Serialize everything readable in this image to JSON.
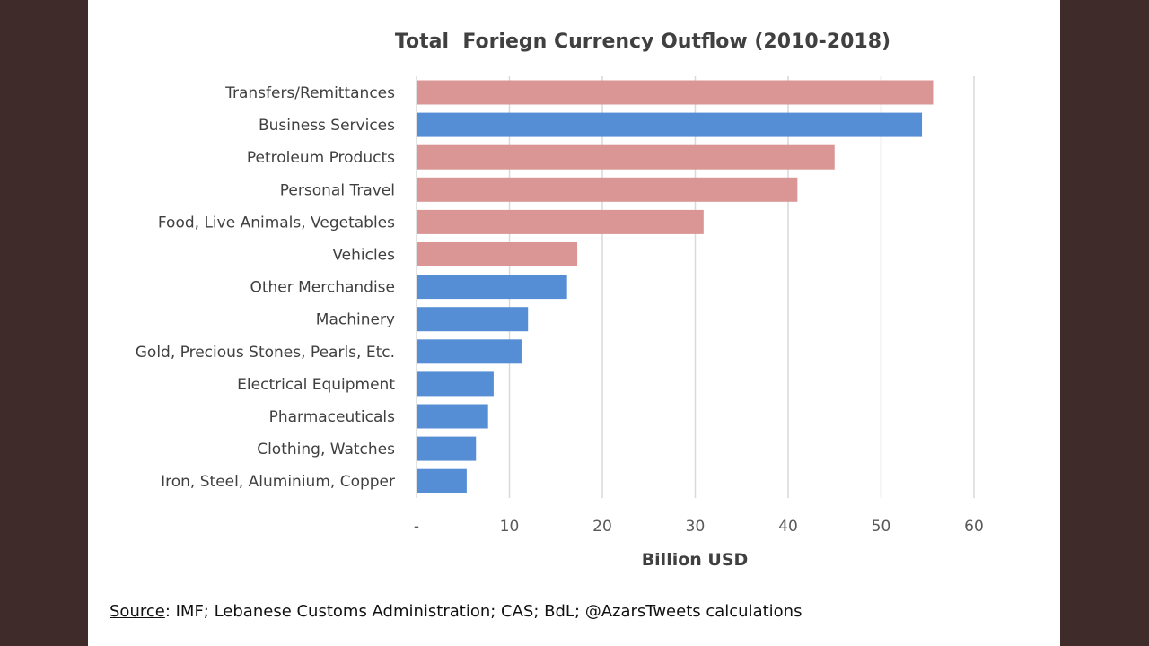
{
  "chart_data": {
    "type": "bar",
    "orientation": "horizontal",
    "title": "Total  Foriegn Currency Outflow (2010-2018)",
    "xlabel": "Billion USD",
    "ylabel": "",
    "xlim": [
      0,
      60
    ],
    "xticks": [
      0,
      10,
      20,
      30,
      40,
      50,
      60
    ],
    "xtick_labels": [
      "-",
      "10",
      "20",
      "30",
      "40",
      "50",
      "60"
    ],
    "grid": "vertical",
    "legend": "none",
    "categories": [
      "Transfers/Remittances",
      "Business Services",
      "Petroleum Products",
      "Personal Travel",
      "Food, Live Animals, Vegetables",
      "Vehicles",
      "Other Merchandise",
      "Machinery",
      "Gold, Precious Stones, Pearls, Etc.",
      "Electrical Equipment",
      "Pharmaceuticals",
      "Clothing, Watches",
      "Iron, Steel, Aluminium, Copper"
    ],
    "values": [
      55.6,
      54.4,
      45.0,
      41.0,
      30.9,
      17.3,
      16.2,
      12.0,
      11.3,
      8.3,
      7.7,
      6.4,
      5.4
    ],
    "bar_colors": [
      "#d99694",
      "#558ed5",
      "#d99694",
      "#d99694",
      "#d99694",
      "#d99694",
      "#558ed5",
      "#558ed5",
      "#558ed5",
      "#558ed5",
      "#558ed5",
      "#558ed5",
      "#558ed5"
    ]
  },
  "source": {
    "label": "Source",
    "text": ": IMF; Lebanese Customs Administration; CAS; BdL; @AzarsTweets calculations"
  }
}
